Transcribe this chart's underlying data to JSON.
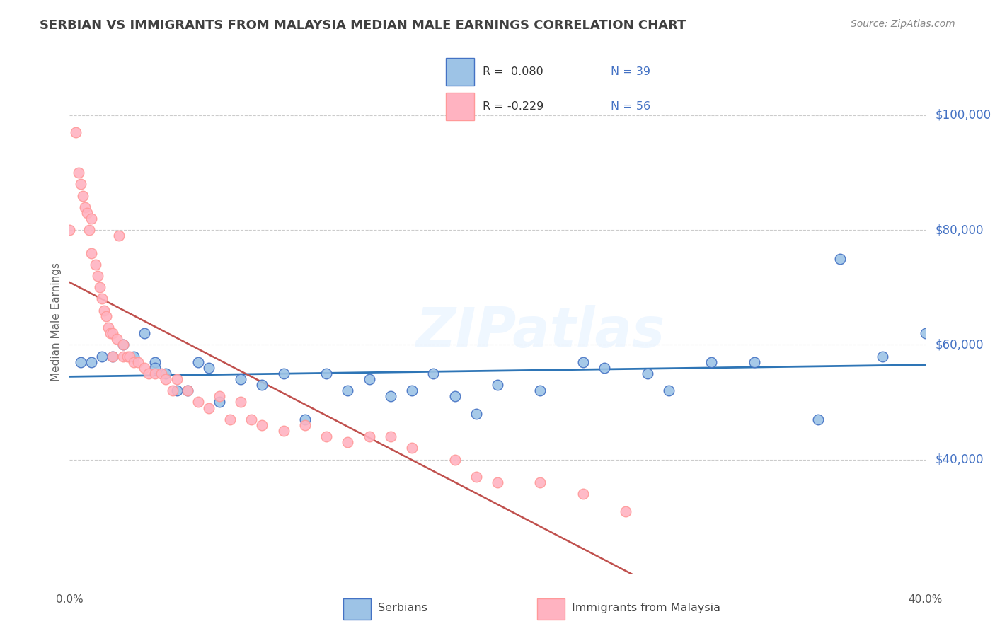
{
  "title": "SERBIAN VS IMMIGRANTS FROM MALAYSIA MEDIAN MALE EARNINGS CORRELATION CHART",
  "source_text": "Source: ZipAtlas.com",
  "ylabel": "Median Male Earnings",
  "watermark": "ZIPatlas",
  "yticks": [
    40000,
    60000,
    80000,
    100000
  ],
  "ytick_labels": [
    "$40,000",
    "$60,000",
    "$80,000",
    "$100,000"
  ],
  "xlim": [
    0.0,
    0.4
  ],
  "ylim": [
    20000,
    108000
  ],
  "blue_color": "#4472C4",
  "blue_fill": "#9DC3E6",
  "pink_color": "#FF9999",
  "pink_fill": "#FFB3C1",
  "trend_blue_color": "#2E75B6",
  "trend_pink_color": "#C0504D",
  "trend_pink_dash_color": "#D9B3B3",
  "axis_label_color": "#4472C4",
  "title_color": "#404040",
  "legend_label1": "Serbians",
  "legend_label2": "Immigrants from Malaysia",
  "blue_scatter_x": [
    0.005,
    0.01,
    0.015,
    0.02,
    0.025,
    0.03,
    0.035,
    0.04,
    0.04,
    0.045,
    0.05,
    0.055,
    0.06,
    0.065,
    0.07,
    0.08,
    0.09,
    0.1,
    0.11,
    0.12,
    0.13,
    0.14,
    0.15,
    0.16,
    0.17,
    0.18,
    0.19,
    0.2,
    0.22,
    0.24,
    0.25,
    0.27,
    0.28,
    0.3,
    0.32,
    0.35,
    0.36,
    0.38,
    0.4
  ],
  "blue_scatter_y": [
    57000,
    57000,
    58000,
    58000,
    60000,
    58000,
    62000,
    57000,
    56000,
    55000,
    52000,
    52000,
    57000,
    56000,
    50000,
    54000,
    53000,
    55000,
    47000,
    55000,
    52000,
    54000,
    51000,
    52000,
    55000,
    51000,
    48000,
    53000,
    52000,
    57000,
    56000,
    55000,
    52000,
    57000,
    57000,
    47000,
    75000,
    58000,
    62000
  ],
  "pink_scatter_x": [
    0.0,
    0.003,
    0.004,
    0.005,
    0.006,
    0.007,
    0.008,
    0.009,
    0.01,
    0.01,
    0.012,
    0.013,
    0.014,
    0.015,
    0.016,
    0.017,
    0.018,
    0.019,
    0.02,
    0.02,
    0.022,
    0.023,
    0.025,
    0.025,
    0.027,
    0.028,
    0.03,
    0.032,
    0.035,
    0.037,
    0.04,
    0.043,
    0.045,
    0.048,
    0.05,
    0.055,
    0.06,
    0.065,
    0.07,
    0.075,
    0.08,
    0.085,
    0.09,
    0.1,
    0.11,
    0.12,
    0.13,
    0.14,
    0.15,
    0.16,
    0.18,
    0.19,
    0.2,
    0.22,
    0.24,
    0.26
  ],
  "pink_scatter_y": [
    80000,
    97000,
    90000,
    88000,
    86000,
    84000,
    83000,
    80000,
    82000,
    76000,
    74000,
    72000,
    70000,
    68000,
    66000,
    65000,
    63000,
    62000,
    62000,
    58000,
    61000,
    79000,
    60000,
    58000,
    58000,
    58000,
    57000,
    57000,
    56000,
    55000,
    55000,
    55000,
    54000,
    52000,
    54000,
    52000,
    50000,
    49000,
    51000,
    47000,
    50000,
    47000,
    46000,
    45000,
    46000,
    44000,
    43000,
    44000,
    44000,
    42000,
    40000,
    37000,
    36000,
    36000,
    34000,
    31000
  ]
}
